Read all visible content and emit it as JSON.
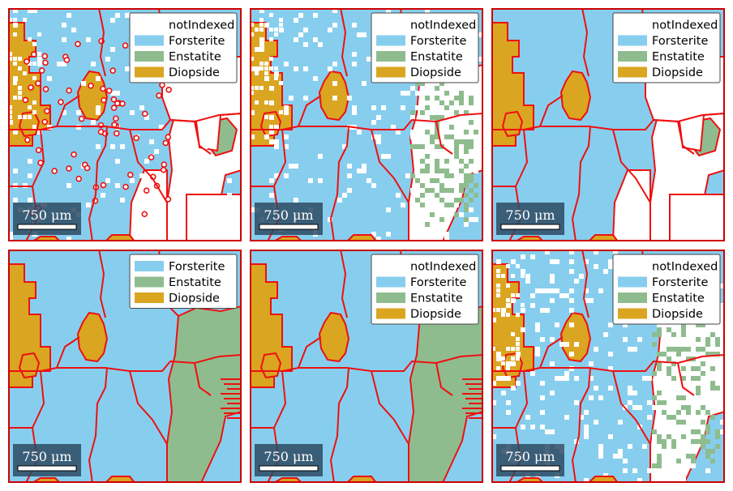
{
  "colors": {
    "notIndexed": "#ffffff",
    "Forsterite": "#87ceee",
    "Enstatite": "#8fbc8f",
    "Diopside": "#daa520",
    "boundary": "#ee1010",
    "frame": "#cc0000",
    "scalebar_bg": "#2d4a63"
  },
  "scalebar_label": "750 μm",
  "panels": [
    {
      "id": "panel-1",
      "legend": [
        "notIndexed",
        "Forsterite",
        "Enstatite",
        "Diopside"
      ],
      "style": "noisy-fine"
    },
    {
      "id": "panel-2",
      "legend": [
        "notIndexed",
        "Forsterite",
        "Enstatite",
        "Diopside"
      ],
      "style": "speckled"
    },
    {
      "id": "panel-3",
      "legend": [
        "notIndexed",
        "Forsterite",
        "Enstatite",
        "Diopside"
      ],
      "style": "clean-with-gaps"
    },
    {
      "id": "panel-4",
      "legend": [
        "Forsterite",
        "Enstatite",
        "Diopside"
      ],
      "style": "filled"
    },
    {
      "id": "panel-5",
      "legend": [
        "notIndexed",
        "Forsterite",
        "Enstatite",
        "Diopside"
      ],
      "style": "filled-smoothed"
    },
    {
      "id": "panel-6",
      "legend": [
        "notIndexed",
        "Forsterite",
        "Enstatite",
        "Diopside"
      ],
      "style": "speckled-fine"
    }
  ]
}
